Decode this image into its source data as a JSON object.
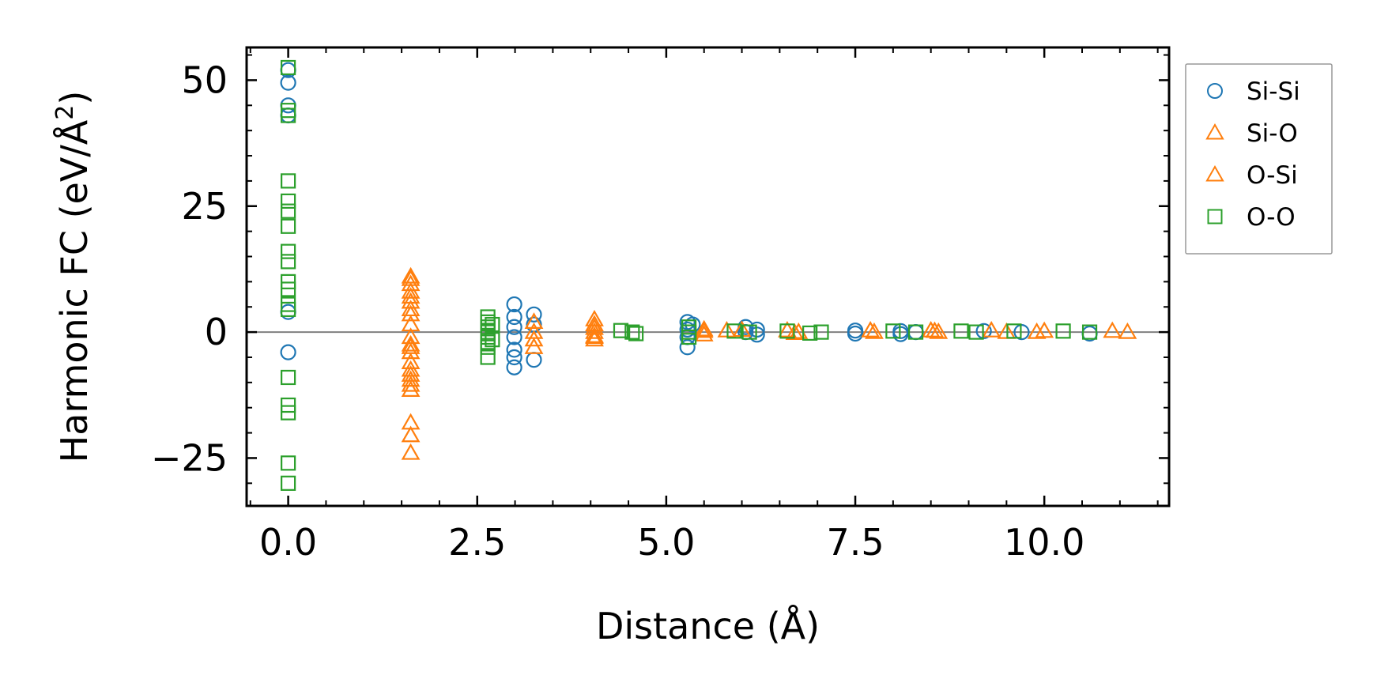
{
  "chart_data": {
    "type": "scatter",
    "xlabel": "Distance (Å)",
    "ylabel": "Harmonic FC (eV/Å",
    "ylabel_superscript": "2",
    "ylabel_close": ")",
    "xlim": [
      -0.55,
      11.65
    ],
    "ylim": [
      -34.5,
      56.5
    ],
    "xticks": [
      0.0,
      2.5,
      5.0,
      7.5,
      10.0
    ],
    "xtick_labels": [
      "0.0",
      "2.5",
      "5.0",
      "7.5",
      "10.0"
    ],
    "yticks": [
      -25,
      0,
      25,
      50
    ],
    "ytick_labels": [
      "−25",
      "0",
      "25",
      "50"
    ],
    "reference_line_y": 0,
    "legend_position": "outside-right",
    "series": [
      {
        "name": "Si-Si",
        "marker": "circle",
        "color": "#1f77b4",
        "points": [
          [
            0.0,
            52.0
          ],
          [
            0.0,
            49.5
          ],
          [
            0.0,
            45.0
          ],
          [
            0.0,
            43.0
          ],
          [
            0.0,
            4.0
          ],
          [
            0.0,
            -4.0
          ],
          [
            2.99,
            5.5
          ],
          [
            2.99,
            3.0
          ],
          [
            2.99,
            1.0
          ],
          [
            2.99,
            -1.0
          ],
          [
            2.99,
            -3.5
          ],
          [
            2.99,
            -5.0
          ],
          [
            2.99,
            -7.0
          ],
          [
            3.25,
            3.5
          ],
          [
            3.25,
            1.5
          ],
          [
            3.25,
            -5.5
          ],
          [
            5.28,
            2.0
          ],
          [
            5.28,
            0.5
          ],
          [
            5.28,
            -1.0
          ],
          [
            5.28,
            -3.0
          ],
          [
            5.35,
            1.5
          ],
          [
            6.05,
            1.0
          ],
          [
            6.05,
            0.0
          ],
          [
            6.2,
            0.5
          ],
          [
            6.2,
            -0.5
          ],
          [
            7.5,
            0.3
          ],
          [
            7.5,
            -0.3
          ],
          [
            8.1,
            0.2
          ],
          [
            8.1,
            -0.4
          ],
          [
            8.3,
            0.0
          ],
          [
            9.2,
            0.2
          ],
          [
            9.7,
            0.0
          ],
          [
            10.6,
            -0.3
          ]
        ]
      },
      {
        "name": "Si-O",
        "marker": "triangle",
        "color": "#ff7f0e",
        "points": [
          [
            1.62,
            11.0
          ],
          [
            1.62,
            9.5
          ],
          [
            1.62,
            8.0
          ],
          [
            1.62,
            6.0
          ],
          [
            1.62,
            3.5
          ],
          [
            1.62,
            1.5
          ],
          [
            1.62,
            -1.0
          ],
          [
            1.62,
            -2.5
          ],
          [
            1.62,
            -4.0
          ],
          [
            1.62,
            -6.0
          ],
          [
            1.62,
            -8.5
          ],
          [
            1.62,
            -10.5
          ],
          [
            1.62,
            -18.0
          ],
          [
            1.62,
            -20.5
          ],
          [
            1.62,
            -24.0
          ],
          [
            3.25,
            2.0
          ],
          [
            3.25,
            0.0
          ],
          [
            3.25,
            -1.5
          ],
          [
            3.25,
            -3.0
          ],
          [
            4.05,
            1.5
          ],
          [
            4.05,
            -1.0
          ],
          [
            5.5,
            0.5
          ],
          [
            5.5,
            -0.5
          ],
          [
            5.8,
            0.3
          ],
          [
            6.6,
            0.3
          ],
          [
            6.7,
            -0.2
          ],
          [
            7.7,
            0.3
          ],
          [
            8.5,
            0.3
          ],
          [
            8.6,
            0.0
          ],
          [
            9.3,
            0.3
          ],
          [
            9.9,
            0.0
          ],
          [
            10.0,
            0.2
          ],
          [
            10.9,
            0.2
          ],
          [
            11.1,
            0.0
          ]
        ]
      },
      {
        "name": "O-Si",
        "marker": "triangle",
        "color": "#ff7f0e",
        "points": [
          [
            1.62,
            10.5
          ],
          [
            1.62,
            7.0
          ],
          [
            1.62,
            4.5
          ],
          [
            1.62,
            -3.0
          ],
          [
            1.62,
            -7.5
          ],
          [
            1.62,
            -9.5
          ],
          [
            1.62,
            -11.5
          ],
          [
            4.05,
            2.5
          ],
          [
            4.05,
            0.8
          ],
          [
            4.05,
            0.0
          ],
          [
            4.05,
            -0.8
          ],
          [
            4.05,
            -1.5
          ],
          [
            5.5,
            0.2
          ],
          [
            6.0,
            0.4
          ],
          [
            6.75,
            0.0
          ],
          [
            7.75,
            0.0
          ],
          [
            8.55,
            0.2
          ],
          [
            9.5,
            0.0
          ]
        ]
      },
      {
        "name": "O-O",
        "marker": "square",
        "color": "#2ca02c",
        "points": [
          [
            0.0,
            52.5
          ],
          [
            0.0,
            44.0
          ],
          [
            0.0,
            43.0
          ],
          [
            0.0,
            30.0
          ],
          [
            0.0,
            26.0
          ],
          [
            0.0,
            24.0
          ],
          [
            0.0,
            21.0
          ],
          [
            0.0,
            16.0
          ],
          [
            0.0,
            14.0
          ],
          [
            0.0,
            10.0
          ],
          [
            0.0,
            8.5
          ],
          [
            0.0,
            5.5
          ],
          [
            0.0,
            4.5
          ],
          [
            0.0,
            -9.0
          ],
          [
            0.0,
            -14.5
          ],
          [
            0.0,
            -16.0
          ],
          [
            0.0,
            -26.0
          ],
          [
            0.0,
            -30.0
          ],
          [
            2.64,
            3.0
          ],
          [
            2.64,
            2.0
          ],
          [
            2.64,
            1.0
          ],
          [
            2.64,
            0.0
          ],
          [
            2.64,
            -1.0
          ],
          [
            2.64,
            -2.0
          ],
          [
            2.64,
            -3.0
          ],
          [
            2.64,
            -5.0
          ],
          [
            2.7,
            1.5
          ],
          [
            2.7,
            -1.5
          ],
          [
            4.4,
            0.3
          ],
          [
            4.6,
            -0.3
          ],
          [
            4.55,
            0.0
          ],
          [
            5.3,
            1.0
          ],
          [
            5.3,
            0.0
          ],
          [
            5.3,
            -1.0
          ],
          [
            5.9,
            0.2
          ],
          [
            6.1,
            0.0
          ],
          [
            6.6,
            0.2
          ],
          [
            6.9,
            -0.2
          ],
          [
            7.05,
            0.0
          ],
          [
            8.0,
            0.2
          ],
          [
            8.3,
            0.0
          ],
          [
            8.9,
            0.2
          ],
          [
            9.1,
            0.0
          ],
          [
            9.6,
            0.2
          ],
          [
            10.25,
            0.2
          ],
          [
            10.6,
            0.0
          ]
        ]
      }
    ]
  }
}
